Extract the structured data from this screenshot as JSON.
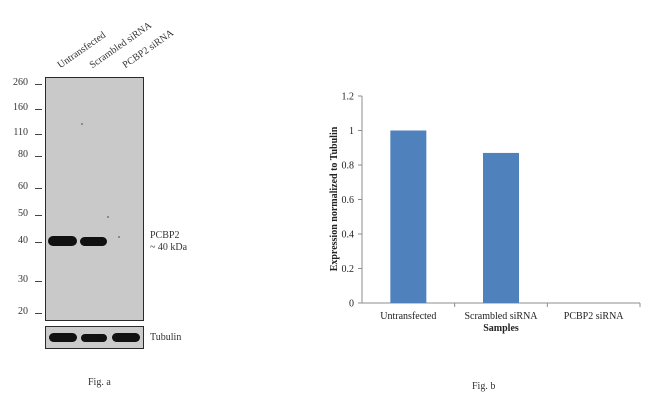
{
  "western_blot": {
    "lanes": [
      "Untransfected",
      "Scrambled siRNA",
      "PCBP2 siRNA"
    ],
    "mw_markers": [
      "260",
      "160",
      "110",
      "80",
      "60",
      "50",
      "40",
      "30",
      "20"
    ],
    "band_label_line1": "PCBP2",
    "band_label_line2": "~ 40 kDa",
    "loading_control": "Tubulin",
    "caption": "Fig. a"
  },
  "chart_data": {
    "type": "bar",
    "categories": [
      "Untransfected",
      "Scrambled siRNA",
      "PCBP2 siRNA"
    ],
    "values": [
      1.0,
      0.87,
      0.0
    ],
    "xlabel": "Samples",
    "ylabel": "Expression  normalized to Tubulin",
    "ylim": [
      0,
      1.2
    ],
    "yticks": [
      "0",
      "0.2",
      "0.4",
      "0.6",
      "0.8",
      "1",
      "1.2"
    ],
    "bar_color": "#4f81bd",
    "grid": false,
    "caption": "Fig. b"
  }
}
